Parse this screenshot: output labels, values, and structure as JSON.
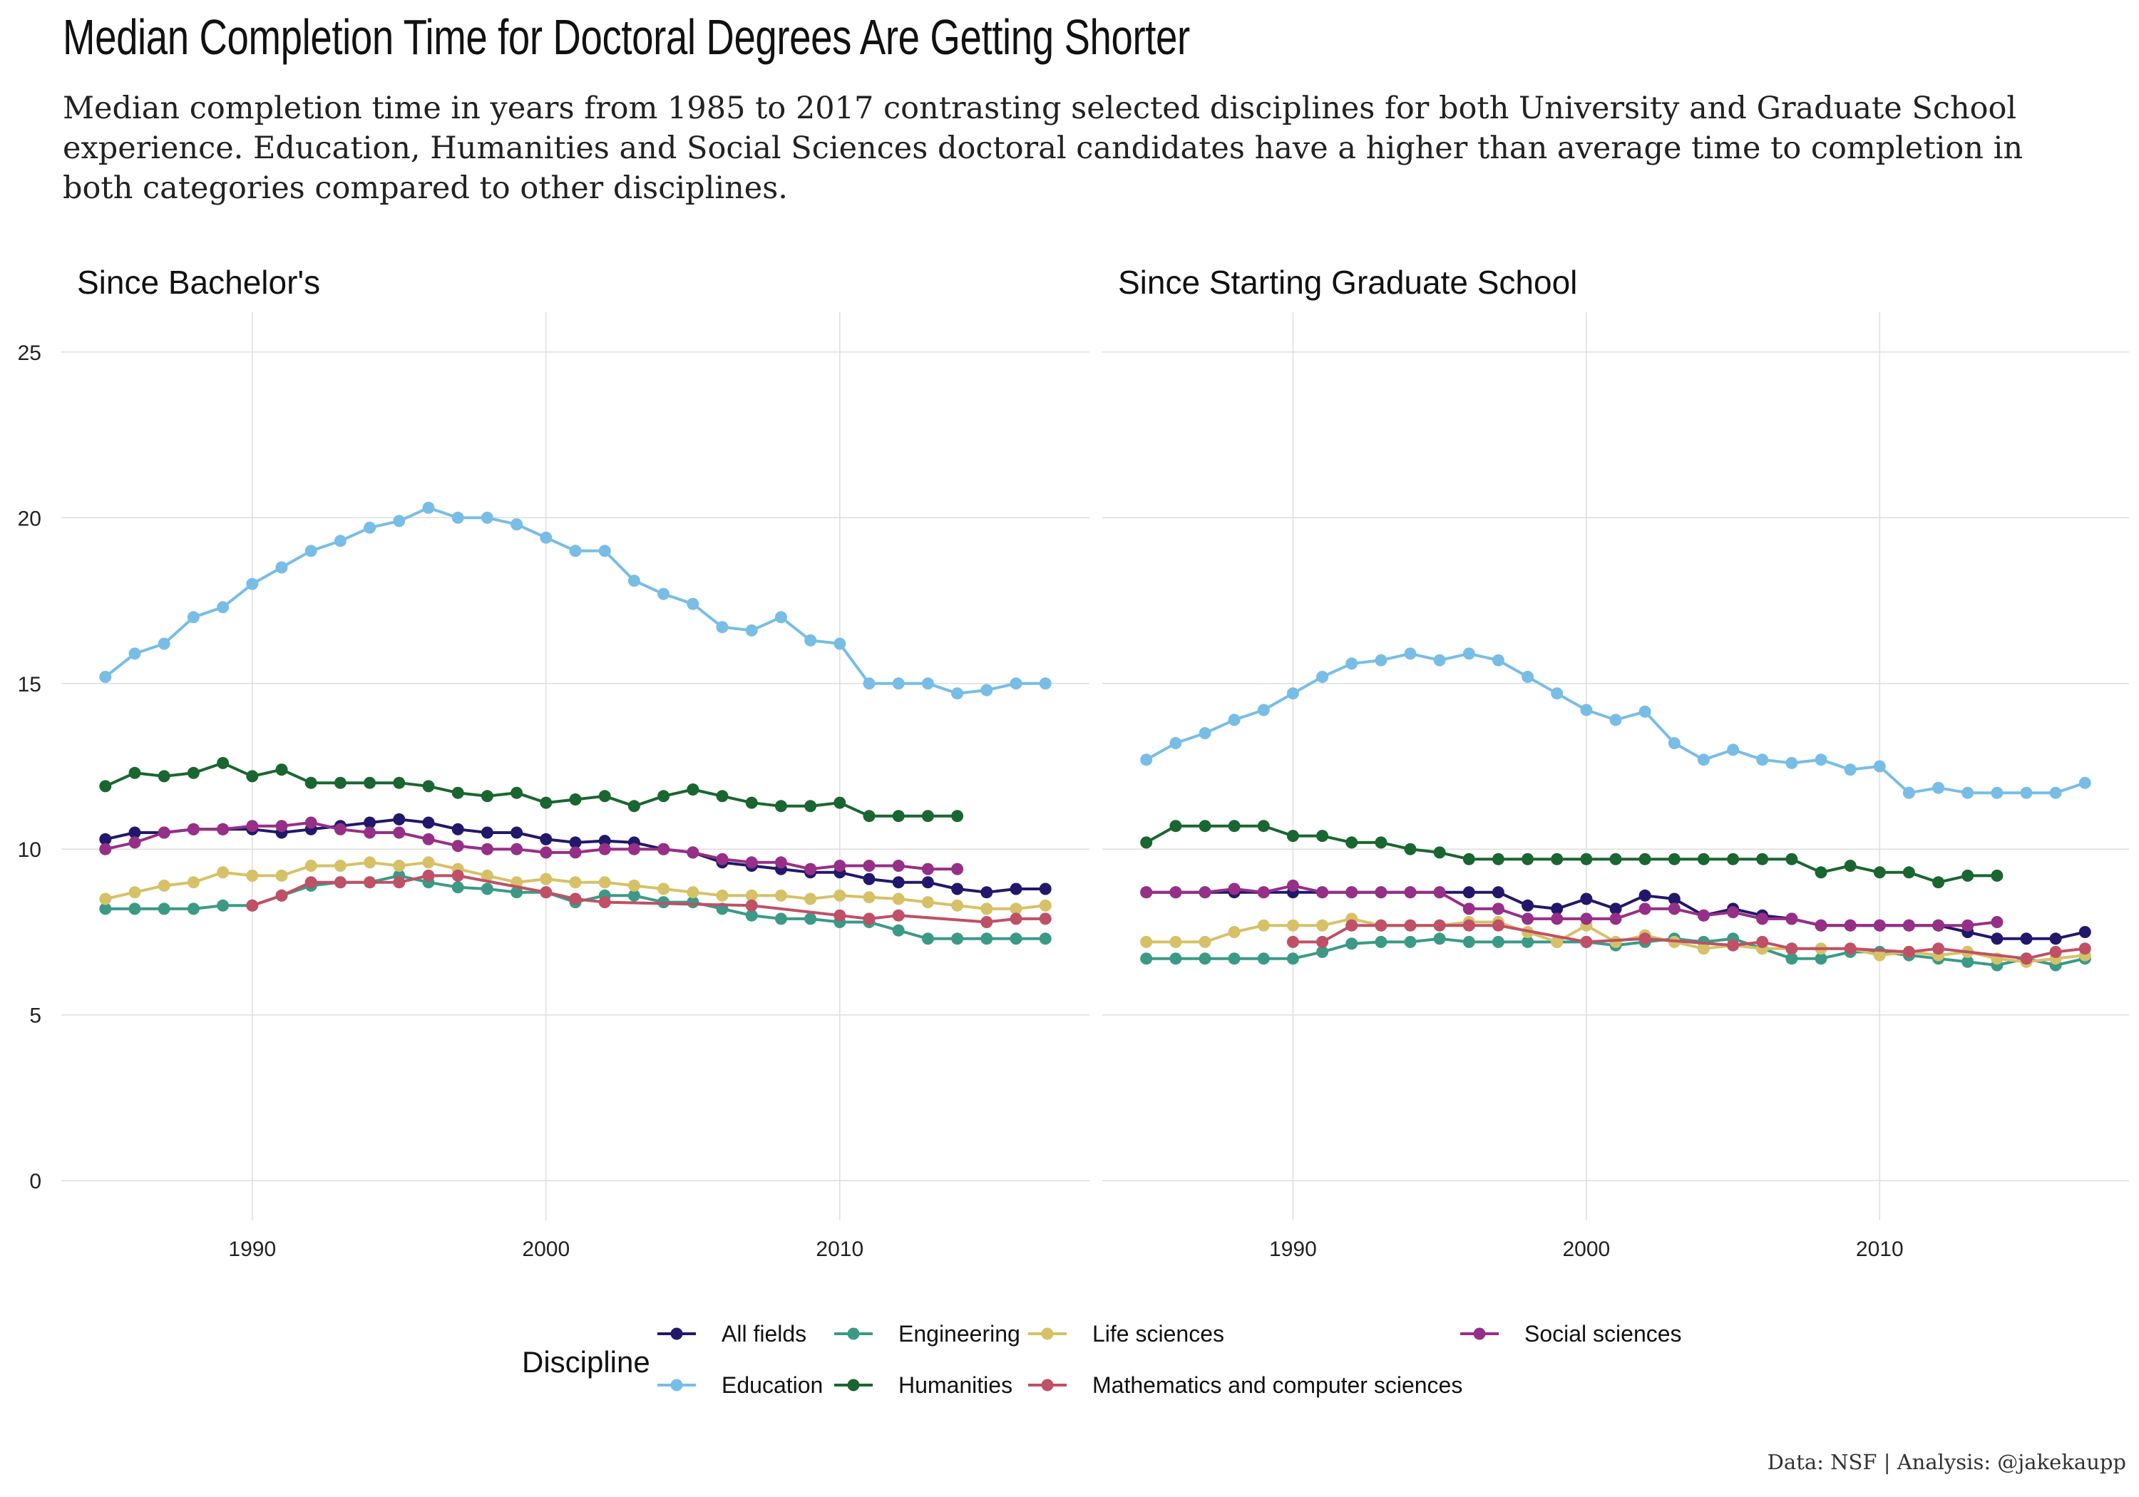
{
  "title": "Median Completion Time for Doctoral Degrees Are Getting Shorter",
  "subtitle": "Median completion time in years from 1985 to 2017 contrasting selected disciplines for both University and Graduate School experience. Education, Humanities and Social Sciences doctoral candidates have a higher than average time to completion in both categories compared to other disciplines.",
  "caption": "Data: NSF | Analysis: @jakekaupp",
  "legend": {
    "title": "Discipline"
  },
  "chart_data": {
    "type": "line",
    "x_ticks": [
      1990,
      2000,
      2010
    ],
    "y_ticks": [
      0,
      5,
      10,
      15,
      20,
      25
    ],
    "xlim": [
      1983.5,
      2018.5
    ],
    "ylim": [
      -1.2,
      26.2
    ],
    "grid": true,
    "legend_position": "bottom",
    "years": [
      1985,
      1986,
      1987,
      1988,
      1989,
      1990,
      1991,
      1992,
      1993,
      1994,
      1995,
      1996,
      1997,
      1998,
      1999,
      2000,
      2001,
      2002,
      2003,
      2004,
      2005,
      2006,
      2007,
      2008,
      2009,
      2010,
      2011,
      2012,
      2013,
      2014,
      2015,
      2016,
      2017
    ],
    "series_styles": [
      {
        "name": "All fields",
        "color": "#22186b"
      },
      {
        "name": "Education",
        "color": "#78bde6"
      },
      {
        "name": "Engineering",
        "color": "#3a9a86"
      },
      {
        "name": "Humanities",
        "color": "#1a6630"
      },
      {
        "name": "Life sciences",
        "color": "#d6c167"
      },
      {
        "name": "Mathematics and computer sciences",
        "color": "#bf5066"
      },
      {
        "name": "Social sciences",
        "color": "#962f87"
      }
    ],
    "panels": [
      {
        "label": "Since Bachelor's",
        "series": [
          {
            "name": "All fields",
            "values": [
              10.3,
              10.5,
              10.5,
              10.6,
              10.6,
              10.6,
              10.5,
              10.6,
              10.7,
              10.8,
              10.9,
              10.8,
              10.6,
              10.5,
              10.5,
              10.3,
              10.2,
              10.25,
              10.2,
              10.0,
              9.9,
              9.6,
              9.5,
              9.4,
              9.3,
              9.3,
              9.1,
              9.0,
              9.0,
              8.8,
              8.7,
              8.8,
              8.8
            ]
          },
          {
            "name": "Education",
            "values": [
              15.2,
              15.9,
              16.2,
              17.0,
              17.3,
              18.0,
              18.5,
              19.0,
              19.3,
              19.7,
              19.9,
              20.3,
              20.0,
              20.0,
              19.8,
              19.4,
              19.0,
              19.0,
              18.1,
              17.7,
              17.4,
              16.7,
              16.6,
              17.0,
              16.3,
              16.2,
              15.0,
              15.0,
              15.0,
              14.7,
              14.8,
              15.0,
              15.0
            ]
          },
          {
            "name": "Engineering",
            "values": [
              8.2,
              8.2,
              8.2,
              8.2,
              8.3,
              8.3,
              8.6,
              8.9,
              9.0,
              9.0,
              9.2,
              9.0,
              8.85,
              8.8,
              8.7,
              8.7,
              8.4,
              8.6,
              8.6,
              8.4,
              8.4,
              8.2,
              8.0,
              7.9,
              7.9,
              7.8,
              7.8,
              7.55,
              7.3,
              7.3,
              7.3,
              7.3,
              7.3
            ]
          },
          {
            "name": "Humanities",
            "values": [
              11.9,
              12.3,
              12.2,
              12.3,
              12.6,
              12.2,
              12.4,
              12.0,
              12.0,
              12.0,
              12.0,
              11.9,
              11.7,
              11.6,
              11.7,
              11.4,
              11.5,
              11.6,
              11.3,
              11.6,
              11.8,
              11.6,
              11.4,
              11.3,
              11.3,
              11.4,
              11.0,
              11.0,
              11.0,
              11.0,
              null,
              null,
              null
            ]
          },
          {
            "name": "Life sciences",
            "values": [
              8.5,
              8.7,
              8.9,
              9.0,
              9.3,
              9.2,
              9.2,
              9.5,
              9.5,
              9.6,
              9.5,
              9.6,
              9.4,
              9.2,
              9.0,
              9.1,
              9.0,
              9.0,
              8.9,
              8.8,
              8.7,
              8.6,
              8.6,
              8.6,
              8.5,
              8.6,
              8.55,
              8.5,
              8.4,
              8.3,
              8.2,
              8.2,
              8.3
            ]
          },
          {
            "name": "Mathematics and computer sciences",
            "values": [
              null,
              null,
              null,
              null,
              null,
              8.3,
              8.6,
              9.0,
              9.0,
              9.0,
              9.0,
              9.2,
              9.2,
              null,
              null,
              8.7,
              8.5,
              8.4,
              null,
              null,
              null,
              null,
              8.3,
              null,
              null,
              8.0,
              7.9,
              8.0,
              null,
              null,
              7.8,
              7.9,
              7.9
            ]
          },
          {
            "name": "Social sciences",
            "values": [
              10.0,
              10.2,
              10.5,
              10.6,
              10.6,
              10.7,
              10.7,
              10.8,
              10.6,
              10.5,
              10.5,
              10.3,
              10.1,
              10.0,
              10.0,
              9.9,
              9.9,
              10.0,
              10.0,
              10.0,
              9.9,
              9.7,
              9.6,
              9.6,
              9.4,
              9.5,
              9.5,
              9.5,
              9.4,
              9.4,
              null,
              null,
              null
            ]
          }
        ]
      },
      {
        "label": "Since Starting Graduate School",
        "series": [
          {
            "name": "All fields",
            "values": [
              8.7,
              8.7,
              8.7,
              8.7,
              8.7,
              8.7,
              8.7,
              8.7,
              8.7,
              8.7,
              8.7,
              8.7,
              8.7,
              8.3,
              8.2,
              8.5,
              8.2,
              8.6,
              8.5,
              8.0,
              8.2,
              8.0,
              7.9,
              7.7,
              7.7,
              7.7,
              7.7,
              7.7,
              7.5,
              7.3,
              7.3,
              7.3,
              7.5
            ]
          },
          {
            "name": "Education",
            "values": [
              12.7,
              13.2,
              13.5,
              13.9,
              14.2,
              14.7,
              15.2,
              15.6,
              15.7,
              15.9,
              15.7,
              15.9,
              15.7,
              15.2,
              14.7,
              14.2,
              13.9,
              14.15,
              13.2,
              12.7,
              13.0,
              12.7,
              12.6,
              12.7,
              12.4,
              12.5,
              11.7,
              11.85,
              11.7,
              11.7,
              11.7,
              11.7,
              12.0
            ]
          },
          {
            "name": "Engineering",
            "values": [
              6.7,
              6.7,
              6.7,
              6.7,
              6.7,
              6.7,
              6.9,
              7.15,
              7.2,
              7.2,
              7.3,
              7.2,
              7.2,
              7.2,
              7.2,
              7.2,
              7.1,
              7.2,
              7.3,
              7.2,
              7.3,
              7.0,
              6.7,
              6.7,
              6.9,
              6.9,
              6.8,
              6.7,
              6.6,
              6.5,
              6.7,
              6.5,
              6.7
            ]
          },
          {
            "name": "Humanities",
            "values": [
              10.2,
              10.7,
              10.7,
              10.7,
              10.7,
              10.4,
              10.4,
              10.2,
              10.2,
              10.0,
              9.9,
              9.7,
              9.7,
              9.7,
              9.7,
              9.7,
              9.7,
              9.7,
              9.7,
              9.7,
              9.7,
              9.7,
              9.7,
              9.3,
              9.5,
              9.3,
              9.3,
              9.0,
              9.2,
              9.2,
              null,
              null,
              null
            ]
          },
          {
            "name": "Life sciences",
            "values": [
              7.2,
              7.2,
              7.2,
              7.5,
              7.7,
              7.7,
              7.7,
              7.9,
              7.7,
              7.7,
              7.7,
              7.8,
              7.8,
              7.5,
              7.2,
              7.7,
              7.2,
              7.4,
              7.2,
              7.0,
              7.1,
              7.0,
              7.0,
              7.0,
              7.0,
              6.8,
              6.9,
              6.8,
              6.9,
              6.7,
              6.6,
              6.7,
              6.8
            ]
          },
          {
            "name": "Mathematics and computer sciences",
            "values": [
              null,
              null,
              null,
              null,
              null,
              7.2,
              7.2,
              7.7,
              7.7,
              7.7,
              7.7,
              7.7,
              7.7,
              null,
              null,
              7.2,
              null,
              7.3,
              null,
              null,
              7.1,
              7.2,
              7.0,
              null,
              7.0,
              null,
              6.9,
              7.0,
              null,
              null,
              6.7,
              6.9,
              7.0
            ]
          },
          {
            "name": "Social sciences",
            "values": [
              8.7,
              8.7,
              8.7,
              8.8,
              8.7,
              8.9,
              8.7,
              8.7,
              8.7,
              8.7,
              8.7,
              8.2,
              8.2,
              7.9,
              7.9,
              7.9,
              7.9,
              8.2,
              8.2,
              8.0,
              8.1,
              7.9,
              7.9,
              7.7,
              7.7,
              7.7,
              7.7,
              7.7,
              7.7,
              7.8,
              null,
              null,
              null
            ]
          }
        ]
      }
    ]
  }
}
